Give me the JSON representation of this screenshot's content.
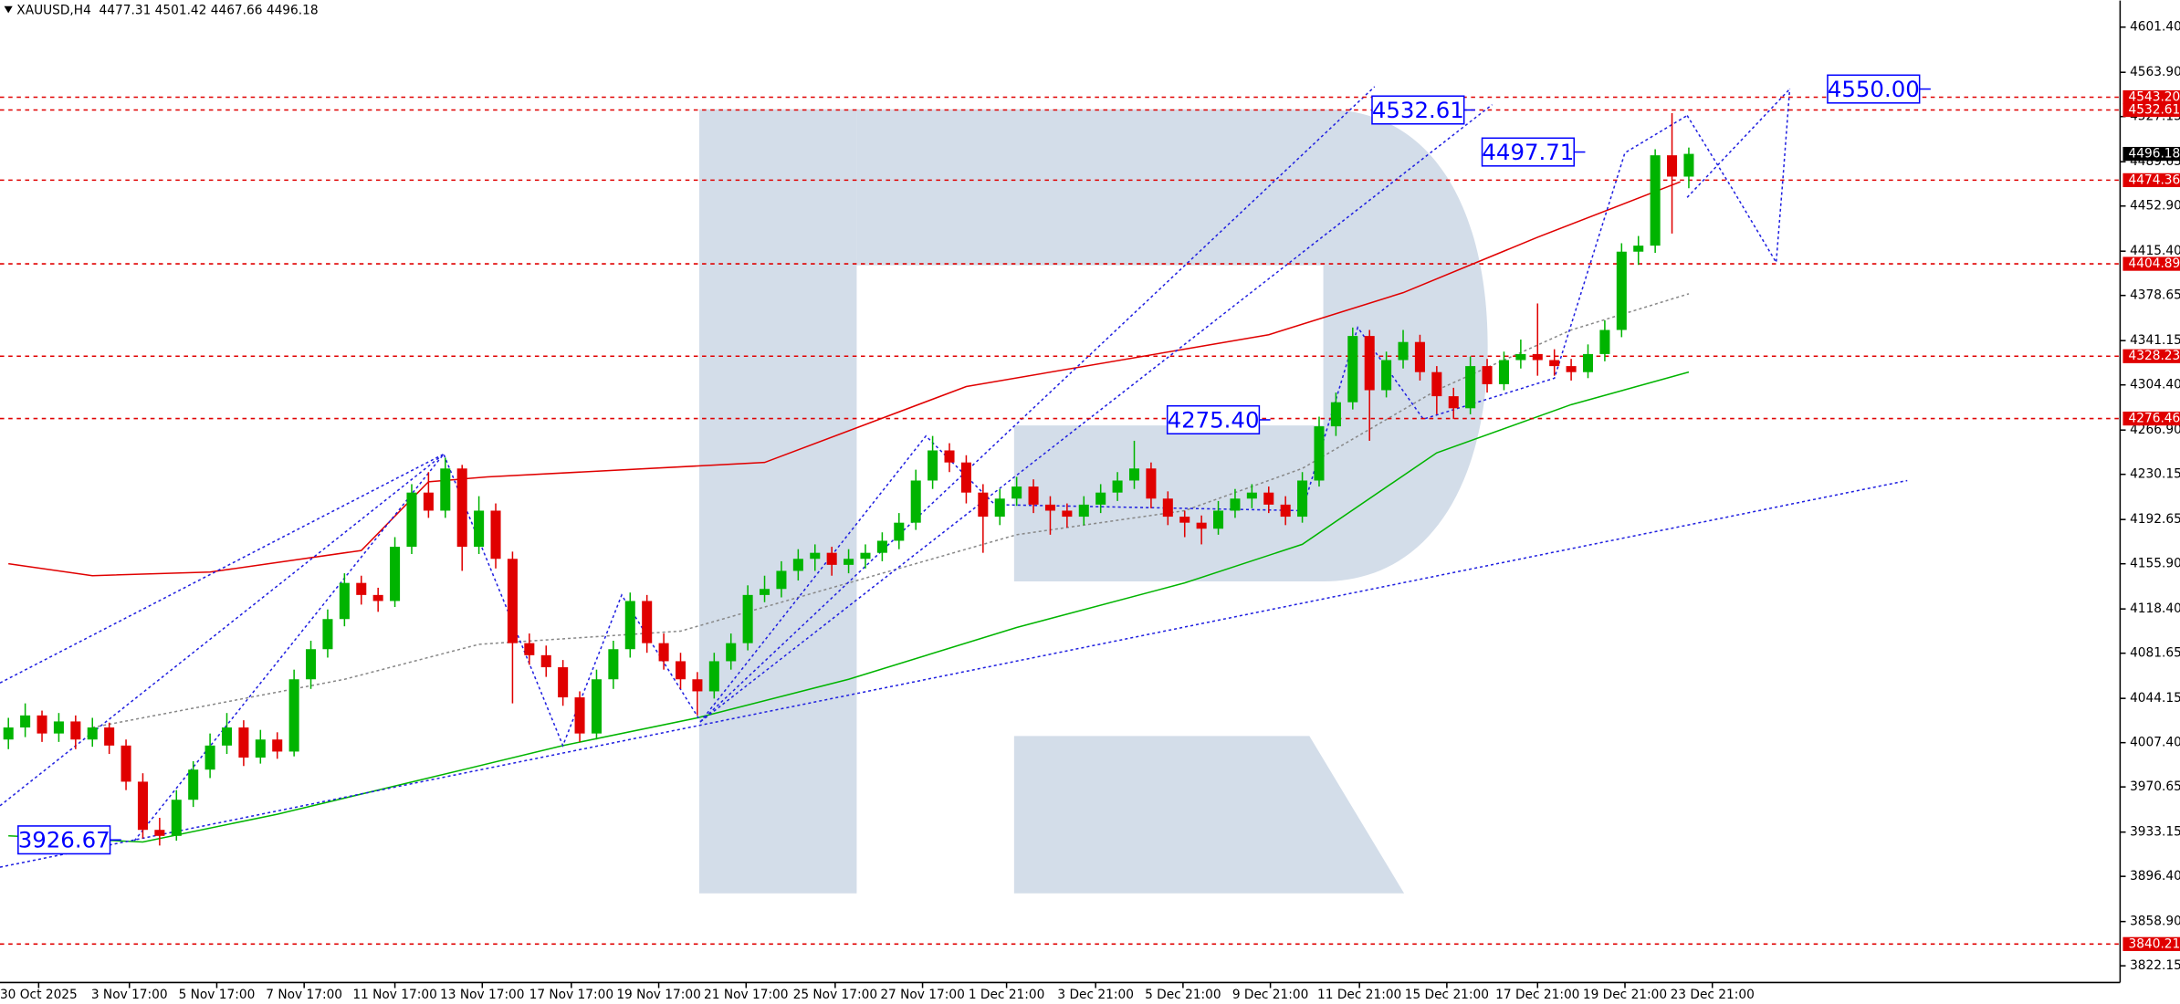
{
  "chart_data": {
    "type": "candlestick",
    "header": "XAUUSD,H4  4477.31 4501.42 4467.66 4496.18",
    "up_color": "#00b400",
    "down_color": "#e00000",
    "xlim": [
      -0.5,
      125.5
    ],
    "ylim": [
      3808.3,
      4623.4
    ],
    "xticks": [
      {
        "value": 1.8,
        "label": "30 Oct 2025"
      },
      {
        "value": 7.2,
        "label": "3 Nov 17:00"
      },
      {
        "value": 12.4,
        "label": "5 Nov 17:00"
      },
      {
        "value": 17.6,
        "label": "7 Nov 17:00"
      },
      {
        "value": 23,
        "label": "11 Nov 17:00"
      },
      {
        "value": 28.2,
        "label": "13 Nov 17:00"
      },
      {
        "value": 33.5,
        "label": "17 Nov 17:00"
      },
      {
        "value": 38.7,
        "label": "19 Nov 17:00"
      },
      {
        "value": 43.9,
        "label": "21 Nov 17:00"
      },
      {
        "value": 49.2,
        "label": "25 Nov 17:00"
      },
      {
        "value": 54.4,
        "label": "27 Nov 17:00"
      },
      {
        "value": 59.4,
        "label": "1 Dec 21:00"
      },
      {
        "value": 64.7,
        "label": "3 Dec 21:00"
      },
      {
        "value": 69.9,
        "label": "5 Dec 21:00"
      },
      {
        "value": 75.1,
        "label": "9 Dec 21:00"
      },
      {
        "value": 80.4,
        "label": "11 Dec 21:00"
      },
      {
        "value": 85.6,
        "label": "15 Dec 21:00"
      },
      {
        "value": 91,
        "label": "17 Dec 21:00"
      },
      {
        "value": 96.2,
        "label": "19 Dec 21:00"
      },
      {
        "value": 101.4,
        "label": "23 Dec 21:00"
      }
    ],
    "yticks": [
      {
        "value": 4601.4,
        "label": "4601.40"
      },
      {
        "value": 4563.9,
        "label": "4563.90"
      },
      4527.15,
      4489.65,
      {
        "value": 4452.9,
        "label": "4452.90"
      },
      {
        "value": 4415.4,
        "label": "4415.40"
      },
      4378.65,
      4341.15,
      {
        "value": 4304.4,
        "label": "4304.40"
      },
      {
        "value": 4266.9,
        "label": "4266.90"
      },
      4230.15,
      4192.65,
      {
        "value": 4155.9,
        "label": "4155.90"
      },
      {
        "value": 4118.4,
        "label": "4118.40"
      },
      4081.65,
      4044.15,
      {
        "value": 4007.4,
        "label": "4007.40"
      },
      3970.65,
      3933.15,
      {
        "value": 3896.4,
        "label": "3896.40"
      },
      {
        "value": 3858.9,
        "label": "3858.90"
      },
      3822.15
    ],
    "levels": [
      {
        "value": 4543.2,
        "label": "4543.20"
      },
      4532.61,
      4474.36,
      4404.89,
      4328.23,
      4276.46,
      3840.21
    ],
    "level_color": "#e00000",
    "current_price": 4496.18,
    "annotations": [
      4532.61,
      4497.71,
      {
        "value": 4275.4,
        "label": "4275.40"
      },
      3926.67,
      {
        "value": 4550,
        "label": "4550.00"
      }
    ],
    "annotation_color": "#0000ff",
    "candles": [
      [
        4010,
        4028,
        4002,
        4020
      ],
      [
        4020,
        4040,
        4012,
        4030
      ],
      [
        4030,
        4034,
        4008,
        4015
      ],
      [
        4015,
        4032,
        4008,
        4025
      ],
      [
        4025,
        4030,
        4002,
        4010
      ],
      [
        4010,
        4028,
        4004,
        4020
      ],
      [
        4020,
        4024,
        3998,
        4005
      ],
      [
        4005,
        4010,
        3968,
        3975
      ],
      [
        3975,
        3982,
        3928,
        3935
      ],
      [
        3935,
        3945,
        3922,
        3930
      ],
      [
        3930,
        3968,
        3926,
        3960
      ],
      [
        3960,
        3992,
        3954,
        3985
      ],
      [
        3985,
        4015,
        3978,
        4005
      ],
      [
        4005,
        4032,
        3998,
        4020
      ],
      [
        4020,
        4026,
        3988,
        3995
      ],
      [
        3995,
        4018,
        3990,
        4010
      ],
      [
        4010,
        4016,
        3994,
        4000
      ],
      [
        4000,
        4068,
        3996,
        4060
      ],
      [
        4060,
        4092,
        4052,
        4085
      ],
      [
        4085,
        4118,
        4078,
        4110
      ],
      [
        4110,
        4148,
        4104,
        4140
      ],
      [
        4140,
        4146,
        4122,
        4130
      ],
      [
        4130,
        4136,
        4116,
        4125
      ],
      [
        4125,
        4178,
        4120,
        4170
      ],
      [
        4170,
        4222,
        4164,
        4215
      ],
      [
        4215,
        4232,
        4194,
        4200
      ],
      [
        4200,
        4244,
        4194,
        4235
      ],
      [
        4235,
        4238,
        4150,
        4170
      ],
      [
        4170,
        4212,
        4164,
        4200
      ],
      [
        4200,
        4206,
        4152,
        4160
      ],
      [
        4160,
        4166,
        4040,
        4090
      ],
      [
        4090,
        4098,
        4072,
        4080
      ],
      [
        4080,
        4088,
        4062,
        4070
      ],
      [
        4070,
        4076,
        4038,
        4045
      ],
      [
        4045,
        4050,
        4008,
        4015
      ],
      [
        4015,
        4068,
        4010,
        4060
      ],
      [
        4060,
        4092,
        4052,
        4085
      ],
      [
        4085,
        4132,
        4078,
        4125
      ],
      [
        4125,
        4130,
        4082,
        4090
      ],
      [
        4090,
        4098,
        4068,
        4075
      ],
      [
        4075,
        4082,
        4052,
        4060
      ],
      [
        4060,
        4066,
        4030,
        4050
      ],
      [
        4050,
        4082,
        4044,
        4075
      ],
      [
        4075,
        4098,
        4068,
        4090
      ],
      [
        4090,
        4138,
        4084,
        4130
      ],
      [
        4130,
        4146,
        4124,
        4135
      ],
      [
        4135,
        4158,
        4128,
        4150
      ],
      [
        4150,
        4168,
        4142,
        4160
      ],
      [
        4160,
        4172,
        4150,
        4165
      ],
      [
        4165,
        4170,
        4146,
        4155
      ],
      [
        4155,
        4168,
        4148,
        4160
      ],
      [
        4160,
        4172,
        4152,
        4165
      ],
      [
        4165,
        4182,
        4158,
        4175
      ],
      [
        4175,
        4198,
        4168,
        4190
      ],
      [
        4190,
        4234,
        4184,
        4225
      ],
      [
        4225,
        4262,
        4218,
        4250
      ],
      [
        4250,
        4256,
        4232,
        4240
      ],
      [
        4240,
        4246,
        4206,
        4215
      ],
      [
        4215,
        4222,
        4165,
        4195
      ],
      [
        4195,
        4218,
        4188,
        4210
      ],
      [
        4210,
        4228,
        4204,
        4220
      ],
      [
        4220,
        4226,
        4198,
        4205
      ],
      [
        4205,
        4212,
        4180,
        4200
      ],
      [
        4200,
        4206,
        4186,
        4195
      ],
      [
        4195,
        4212,
        4188,
        4205
      ],
      [
        4205,
        4222,
        4198,
        4215
      ],
      [
        4215,
        4232,
        4208,
        4225
      ],
      [
        4225,
        4258,
        4218,
        4235
      ],
      [
        4235,
        4240,
        4202,
        4210
      ],
      [
        4210,
        4216,
        4188,
        4195
      ],
      [
        4195,
        4200,
        4178,
        4190
      ],
      [
        4190,
        4196,
        4172,
        4185
      ],
      [
        4185,
        4208,
        4180,
        4200
      ],
      [
        4200,
        4218,
        4194,
        4210
      ],
      [
        4210,
        4222,
        4202,
        4215
      ],
      [
        4215,
        4220,
        4198,
        4205
      ],
      [
        4205,
        4212,
        4188,
        4195
      ],
      [
        4195,
        4232,
        4190,
        4225
      ],
      [
        4225,
        4278,
        4220,
        4270
      ],
      [
        4270,
        4298,
        4262,
        4290
      ],
      [
        4290,
        4352,
        4284,
        4345
      ],
      [
        4345,
        4350,
        4258,
        4300
      ],
      [
        4300,
        4332,
        4294,
        4325
      ],
      [
        4325,
        4350,
        4318,
        4340
      ],
      [
        4340,
        4346,
        4308,
        4315
      ],
      [
        4315,
        4320,
        4280,
        4295
      ],
      [
        4295,
        4302,
        4276,
        4285
      ],
      [
        4285,
        4328,
        4280,
        4320
      ],
      [
        4320,
        4326,
        4298,
        4305
      ],
      [
        4305,
        4332,
        4300,
        4325
      ],
      [
        4325,
        4342,
        4318,
        4330
      ],
      [
        4330,
        4372,
        4312,
        4325
      ],
      [
        4325,
        4334,
        4312,
        4320
      ],
      [
        4320,
        4326,
        4308,
        4315
      ],
      [
        4315,
        4338,
        4310,
        4330
      ],
      [
        4330,
        4358,
        4324,
        4350
      ],
      [
        4350,
        4422,
        4344,
        4415
      ],
      [
        4415,
        4428,
        4404,
        4420
      ],
      [
        4420,
        4500,
        4414,
        4495
      ],
      [
        4495,
        4530,
        4430,
        4477.31
      ],
      [
        4477.31,
        4501.42,
        4467.66,
        4496.18
      ]
    ],
    "lines": [
      {
        "color": "#e00000",
        "style": "solid",
        "x": [
          0,
          5,
          12,
          21,
          25,
          28.5,
          45,
          57,
          75,
          83,
          91,
          99.5
        ],
        "values": [
          4156,
          4146,
          4149,
          4167,
          4224,
          4228,
          4240,
          4303,
          4346,
          4381,
          4427,
          4473
        ]
      },
      {
        "color": "#00b400",
        "style": "solid",
        "x": [
          0,
          8,
          16,
          25,
          33,
          41,
          50,
          60,
          70,
          77,
          85,
          93,
          100
        ],
        "values": [
          3930,
          3925,
          3948,
          3978,
          4005,
          4028,
          4060,
          4103,
          4140,
          4172,
          4248,
          4288,
          4315
        ]
      },
      {
        "color": "#888888",
        "style": "dotted",
        "x": [
          5,
          20,
          28,
          40,
          50,
          60,
          70,
          77,
          85,
          93,
          100
        ],
        "values": [
          4020,
          4060,
          4089,
          4100,
          4140,
          4180,
          4200,
          4235,
          4300,
          4350,
          4380
        ]
      },
      {
        "color": "#2020e0",
        "style": "dotted",
        "x": [
          -0.5,
          113
        ],
        "values": [
          3904,
          4225
        ]
      },
      {
        "color": "#2020e0",
        "style": "dotted",
        "x": [
          -0.5,
          25.9
        ],
        "values": [
          4057,
          4247
        ]
      },
      {
        "color": "#2020e0",
        "style": "dotted",
        "x": [
          -0.5,
          25.9
        ],
        "values": [
          3955,
          4247
        ]
      },
      {
        "color": "#2020e0",
        "style": "dotted",
        "x": [
          41.2,
          81.3
        ],
        "values": [
          4025,
          4552
        ]
      },
      {
        "color": "#2020e0",
        "style": "dotted",
        "x": [
          41.2,
          88.3
        ],
        "values": [
          4025,
          4537
        ]
      },
      {
        "color": "#2020e0",
        "style": "dotted",
        "x": [
          7.5,
          25.9,
          33,
          36.5,
          41.2,
          54.6,
          58.7,
          77,
          80.3,
          84.2,
          92,
          96.2,
          99.9
        ],
        "values": [
          3926,
          4247,
          4005,
          4130,
          4025,
          4262,
          4205,
          4200,
          4352,
          4276,
          4310,
          4497,
          4528
        ]
      },
      {
        "color": "#2020e0",
        "style": "dotted",
        "x": [
          99.9,
          102.6,
          105.2,
          105.6,
          106
        ],
        "values": [
          4528,
          4467,
          4406,
          4475,
          4550
        ]
      },
      {
        "color": "#2020e0",
        "style": "dotted",
        "x": [
          99.9,
          106
        ],
        "values": [
          4460,
          4550
        ]
      }
    ]
  }
}
